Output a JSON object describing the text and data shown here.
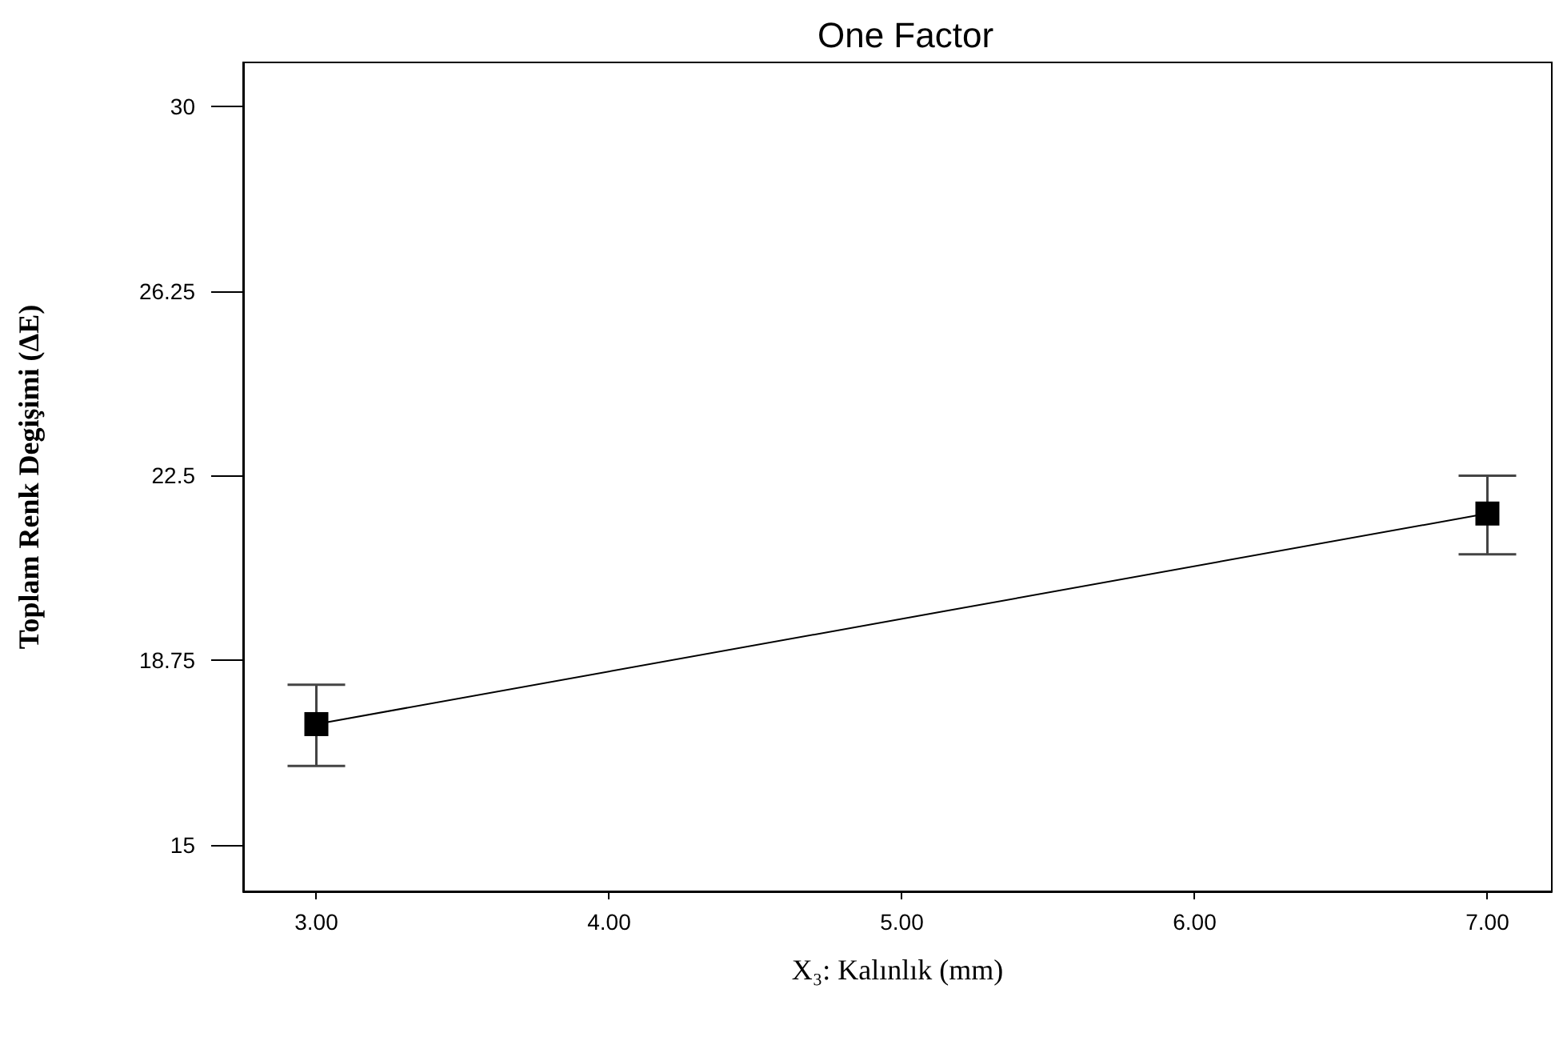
{
  "chart_data": {
    "type": "line",
    "title": "One Factor",
    "xlabel": "X₃: Kalınlık (mm)",
    "ylabel": "Toplam Renk Degişimi (ΔE)",
    "x": [
      3,
      7
    ],
    "series": [
      {
        "color": "#000000",
        "values": [
          17.45,
          21.73
        ],
        "errors": [
          [
            16.6,
            18.25
          ],
          [
            20.9,
            22.5
          ]
        ]
      }
    ],
    "xlim": [
      2.75,
      7.22
    ],
    "xticks": [
      {
        "value": 3,
        "label": "3.00"
      },
      {
        "value": 4,
        "label": "4.00"
      },
      {
        "value": 5,
        "label": "5.00"
      },
      {
        "value": 6,
        "label": "6.00"
      },
      {
        "value": 7,
        "label": "7.00"
      }
    ],
    "ylim": [
      14.05,
      30.9
    ],
    "yticks": [
      15,
      18.75,
      22.5,
      26.25,
      30
    ],
    "grid": false,
    "marker": "square",
    "line_style": "solid"
  }
}
